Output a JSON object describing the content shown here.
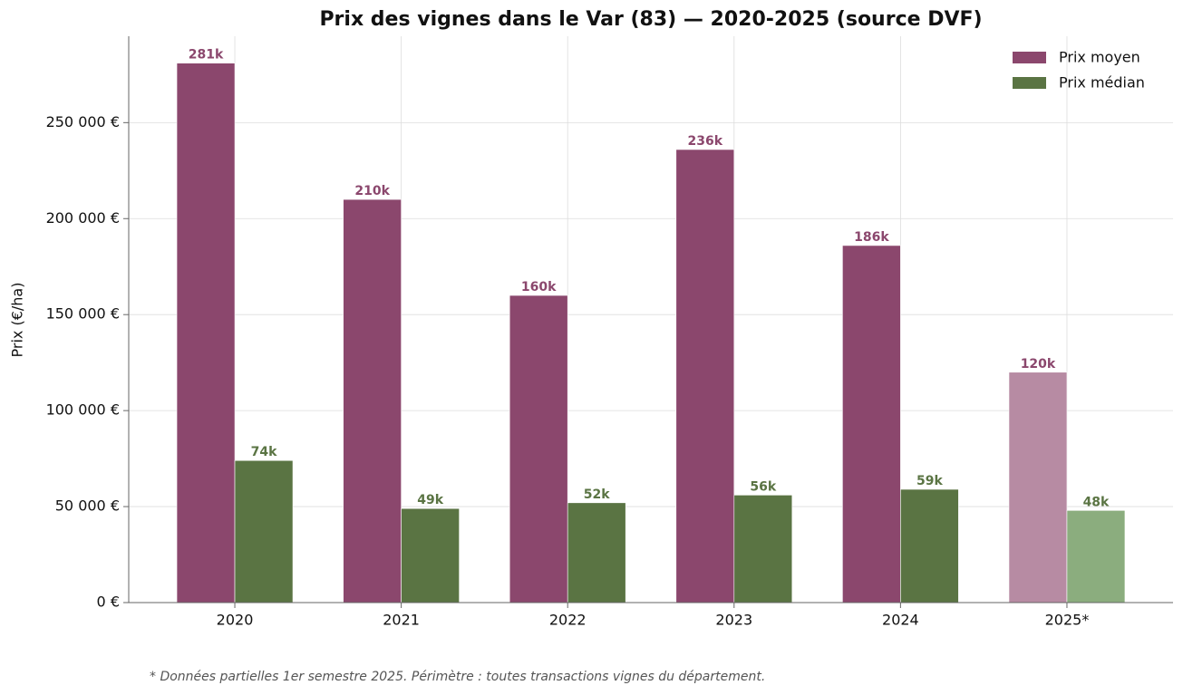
{
  "chart_data": {
    "type": "bar",
    "title": "Prix des vignes dans le Var (83) — 2020-2025 (source DVF)",
    "ylabel": "Prix (€/ha)",
    "footnote": "* Données partielles 1er semestre 2025. Périmètre : toutes transactions vignes du département.",
    "categories": [
      "2020",
      "2021",
      "2022",
      "2023",
      "2024",
      "2025*"
    ],
    "series": [
      {
        "name": "Prix moyen",
        "color": "#8b476d",
        "colors": [
          "#8b476d",
          "#8b476d",
          "#8b476d",
          "#8b476d",
          "#8b476d",
          "#b78ba3"
        ],
        "values": [
          281000,
          210000,
          160000,
          236000,
          186000,
          120000
        ],
        "value_labels": [
          "281k",
          "210k",
          "160k",
          "236k",
          "186k",
          "120k"
        ]
      },
      {
        "name": "Prix médian",
        "color": "#5a7443",
        "colors": [
          "#5a7443",
          "#5a7443",
          "#5a7443",
          "#5a7443",
          "#5a7443",
          "#8bad7e"
        ],
        "values": [
          74000,
          49000,
          52000,
          56000,
          59000,
          48000
        ],
        "value_labels": [
          "74k",
          "49k",
          "52k",
          "56k",
          "59k",
          "48k"
        ]
      }
    ],
    "ylim": [
      0,
      295000
    ],
    "yticks": [
      {
        "value": 0,
        "label": "0 €"
      },
      {
        "value": 50000,
        "label": "50 000 €"
      },
      {
        "value": 100000,
        "label": "100 000 €"
      },
      {
        "value": 150000,
        "label": "150 000 €"
      },
      {
        "value": 200000,
        "label": "200 000 €"
      },
      {
        "value": 250000,
        "label": "250 000 €"
      }
    ],
    "grid": true,
    "legend": "upper right"
  }
}
